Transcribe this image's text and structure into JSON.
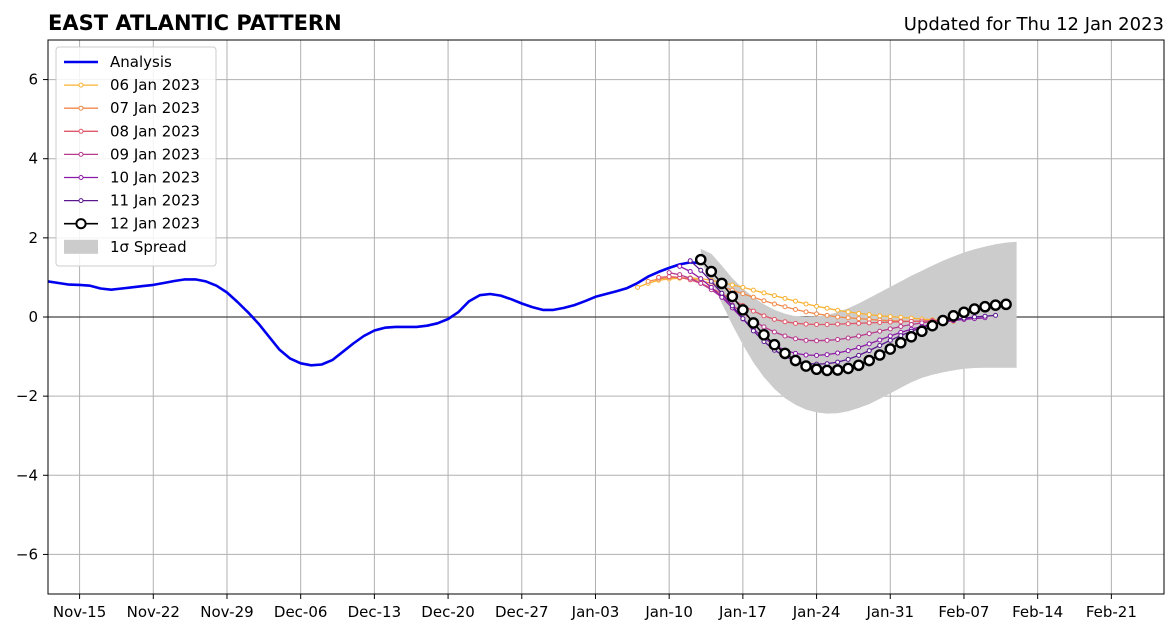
{
  "chart_data": {
    "type": "line",
    "title": "EAST ATLANTIC PATTERN",
    "subtitle": "Updated for Thu 12 Jan 2023",
    "xlabel": "",
    "ylabel": "",
    "xlim": [
      "2022-11-12",
      "2023-02-26"
    ],
    "ylim": [
      -7,
      7
    ],
    "grid": true,
    "legend_position": "top-left",
    "x_ticks": [
      "2022-11-15",
      "2022-11-22",
      "2022-11-29",
      "2022-12-06",
      "2022-12-13",
      "2022-12-20",
      "2022-12-27",
      "2023-01-03",
      "2023-01-10",
      "2023-01-17",
      "2023-01-24",
      "2023-01-31",
      "2023-02-07",
      "2023-02-14",
      "2023-02-21"
    ],
    "x_tick_labels": [
      "Nov-15",
      "Nov-22",
      "Nov-29",
      "Dec-06",
      "Dec-13",
      "Dec-20",
      "Dec-27",
      "Jan-03",
      "Jan-10",
      "Jan-17",
      "Jan-24",
      "Jan-31",
      "Feb-07",
      "Feb-14",
      "Feb-21"
    ],
    "y_ticks": [
      -6,
      -4,
      -2,
      0,
      2,
      4,
      6
    ],
    "y_tick_labels": [
      "−6",
      "−4",
      "−2",
      "0",
      "2",
      "4",
      "6"
    ],
    "analysis": {
      "name": "Analysis",
      "color": "#0000ee",
      "start": "2022-11-12",
      "values": [
        0.9,
        0.86,
        0.82,
        0.81,
        0.79,
        0.72,
        0.69,
        0.72,
        0.75,
        0.78,
        0.81,
        0.86,
        0.91,
        0.95,
        0.95,
        0.9,
        0.79,
        0.62,
        0.38,
        0.12,
        -0.17,
        -0.5,
        -0.83,
        -1.05,
        -1.17,
        -1.22,
        -1.2,
        -1.09,
        -0.88,
        -0.67,
        -0.48,
        -0.34,
        -0.27,
        -0.25,
        -0.25,
        -0.25,
        -0.22,
        -0.16,
        -0.05,
        0.13,
        0.4,
        0.55,
        0.58,
        0.54,
        0.45,
        0.34,
        0.25,
        0.18,
        0.18,
        0.23,
        0.3,
        0.4,
        0.51,
        0.58,
        0.65,
        0.73,
        0.86,
        1.02,
        1.14,
        1.24,
        1.33,
        1.38,
        1.36
      ]
    },
    "forecasts": [
      {
        "name": "06 Jan 2023",
        "color": "#f9b233",
        "start": "2023-01-07",
        "values": [
          0.75,
          0.85,
          0.93,
          0.96,
          0.98,
          0.99,
          0.97,
          0.93,
          0.87,
          0.81,
          0.75,
          0.68,
          0.61,
          0.54,
          0.47,
          0.4,
          0.33,
          0.27,
          0.22,
          0.17,
          0.13,
          0.09,
          0.06,
          0.03,
          0.01,
          -0.01,
          -0.03,
          -0.05,
          -0.07,
          -0.08,
          -0.09
        ]
      },
      {
        "name": "07 Jan 2023",
        "color": "#f08a4b",
        "start": "2023-01-08",
        "values": [
          0.9,
          0.96,
          1.0,
          1.0,
          0.97,
          0.92,
          0.85,
          0.77,
          0.68,
          0.59,
          0.5,
          0.41,
          0.33,
          0.26,
          0.19,
          0.13,
          0.08,
          0.04,
          0.0,
          -0.02,
          -0.04,
          -0.06,
          -0.08,
          -0.09,
          -0.1,
          -0.11,
          -0.11,
          -0.11,
          -0.11,
          -0.11
        ]
      },
      {
        "name": "08 Jan 2023",
        "color": "#e0596b",
        "start": "2023-01-09",
        "values": [
          1.0,
          1.02,
          1.0,
          0.94,
          0.85,
          0.73,
          0.59,
          0.44,
          0.29,
          0.15,
          0.03,
          -0.06,
          -0.12,
          -0.16,
          -0.18,
          -0.19,
          -0.19,
          -0.18,
          -0.17,
          -0.16,
          -0.15,
          -0.14,
          -0.13,
          -0.12,
          -0.11,
          -0.1,
          -0.09,
          -0.08,
          -0.07,
          -0.06
        ]
      },
      {
        "name": "09 Jan 2023",
        "color": "#b83a8f",
        "start": "2023-01-10",
        "values": [
          1.12,
          1.07,
          0.98,
          0.85,
          0.69,
          0.5,
          0.3,
          0.1,
          -0.09,
          -0.25,
          -0.38,
          -0.48,
          -0.55,
          -0.59,
          -0.6,
          -0.59,
          -0.57,
          -0.53,
          -0.48,
          -0.42,
          -0.36,
          -0.3,
          -0.24,
          -0.19,
          -0.15,
          -0.11,
          -0.08,
          -0.06,
          -0.04,
          -0.02
        ]
      },
      {
        "name": "10 Jan 2023",
        "color": "#8b1aa6",
        "start": "2023-01-11",
        "values": [
          1.28,
          1.15,
          0.97,
          0.75,
          0.5,
          0.23,
          -0.05,
          -0.31,
          -0.53,
          -0.71,
          -0.84,
          -0.92,
          -0.96,
          -0.97,
          -0.95,
          -0.91,
          -0.85,
          -0.77,
          -0.68,
          -0.58,
          -0.48,
          -0.39,
          -0.31,
          -0.24,
          -0.18,
          -0.13,
          -0.09,
          -0.06,
          -0.04,
          -0.02
        ]
      },
      {
        "name": "11 Jan 2023",
        "color": "#5a188f",
        "start": "2023-01-12",
        "values": [
          1.42,
          1.18,
          0.9,
          0.6,
          0.28,
          -0.04,
          -0.35,
          -0.62,
          -0.84,
          -1.0,
          -1.11,
          -1.17,
          -1.19,
          -1.18,
          -1.14,
          -1.07,
          -0.97,
          -0.85,
          -0.72,
          -0.59,
          -0.47,
          -0.36,
          -0.27,
          -0.19,
          -0.12,
          -0.07,
          -0.03,
          0.0,
          0.02,
          0.04
        ]
      },
      {
        "name": "12 Jan 2023",
        "color": "#000000",
        "start": "2023-01-13",
        "values": [
          1.45,
          1.15,
          0.85,
          0.52,
          0.18,
          -0.15,
          -0.45,
          -0.7,
          -0.92,
          -1.1,
          -1.24,
          -1.32,
          -1.35,
          -1.34,
          -1.3,
          -1.22,
          -1.1,
          -0.96,
          -0.81,
          -0.65,
          -0.5,
          -0.36,
          -0.22,
          -0.09,
          0.03,
          0.12,
          0.2,
          0.26,
          0.3,
          0.32
        ]
      }
    ],
    "spread": {
      "name": "1σ Spread",
      "color": "#cccccc",
      "start": "2023-01-13",
      "upper": [
        1.72,
        1.6,
        1.3,
        0.98,
        0.72,
        0.5,
        0.32,
        0.18,
        0.08,
        0.02,
        0.0,
        0.01,
        0.05,
        0.12,
        0.22,
        0.34,
        0.48,
        0.62,
        0.76,
        0.9,
        1.04,
        1.17,
        1.3,
        1.42,
        1.53,
        1.63,
        1.71,
        1.78,
        1.84,
        1.88,
        1.9
      ],
      "lower": [
        1.4,
        0.9,
        0.35,
        -0.2,
        -0.7,
        -1.15,
        -1.52,
        -1.82,
        -2.05,
        -2.22,
        -2.34,
        -2.41,
        -2.44,
        -2.43,
        -2.38,
        -2.3,
        -2.2,
        -2.07,
        -1.93,
        -1.79,
        -1.65,
        -1.54,
        -1.46,
        -1.4,
        -1.35,
        -1.31,
        -1.29,
        -1.28,
        -1.28,
        -1.28,
        -1.28
      ]
    }
  }
}
